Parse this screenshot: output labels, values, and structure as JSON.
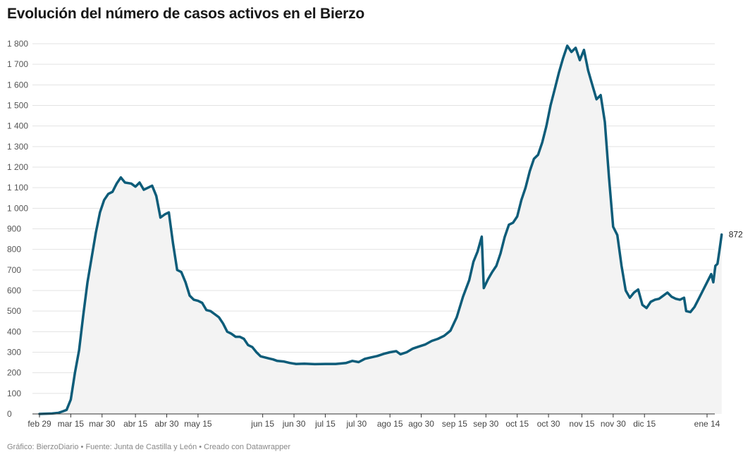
{
  "title": "Evolución del número de casos activos en el Bierzo",
  "footer": "Gráfico: BierzoDiario • Fuente: Junta de Castilla y León • Creado con Datawrapper",
  "colors": {
    "line": "#0d5c79",
    "area": "#f3f3f3",
    "grid": "#e3e3e3",
    "axis": "#333333",
    "tick_text": "#555555"
  },
  "chart_data": {
    "type": "area",
    "title": "Evolución del número de casos activos en el Bierzo",
    "xlabel": "",
    "ylabel": "",
    "ylim": [
      0,
      1800
    ],
    "grid": true,
    "y_ticks": [
      0,
      100,
      200,
      300,
      400,
      500,
      600,
      700,
      800,
      900,
      1000,
      1100,
      1200,
      1300,
      1400,
      1500,
      1600,
      1700,
      1800
    ],
    "y_tick_labels": [
      "0",
      "100",
      "200",
      "300",
      "400",
      "500",
      "600",
      "700",
      "800",
      "900",
      "1 000",
      "1 100",
      "1 200",
      "1 300",
      "1 400",
      "1 500",
      "1 600",
      "1 700",
      "1 800"
    ],
    "x_tick_labels": [
      {
        "label": "feb 29",
        "date": "2020-02-29"
      },
      {
        "label": "mar 15",
        "date": "2020-03-15"
      },
      {
        "label": "mar 30",
        "date": "2020-03-30"
      },
      {
        "label": "abr 15",
        "date": "2020-04-15"
      },
      {
        "label": "abr 30",
        "date": "2020-04-30"
      },
      {
        "label": "may 15",
        "date": "2020-05-15"
      },
      {
        "label": "jun 15",
        "date": "2020-06-15"
      },
      {
        "label": "jun 30",
        "date": "2020-06-30"
      },
      {
        "label": "jul 15",
        "date": "2020-07-15"
      },
      {
        "label": "jul 30",
        "date": "2020-07-30"
      },
      {
        "label": "ago 15",
        "date": "2020-08-15"
      },
      {
        "label": "ago 30",
        "date": "2020-08-30"
      },
      {
        "label": "sep 15",
        "date": "2020-09-15"
      },
      {
        "label": "sep 30",
        "date": "2020-09-30"
      },
      {
        "label": "oct 15",
        "date": "2020-10-15"
      },
      {
        "label": "oct 30",
        "date": "2020-10-30"
      },
      {
        "label": "nov 15",
        "date": "2020-11-15"
      },
      {
        "label": "nov 30",
        "date": "2020-11-30"
      },
      {
        "label": "dic 15",
        "date": "2020-12-15"
      },
      {
        "label": "ene 14",
        "date": "2021-01-14"
      }
    ],
    "end_label": "872",
    "series": [
      {
        "points": [
          [
            "2020-02-29",
            0
          ],
          [
            "2020-03-06",
            2
          ],
          [
            "2020-03-09",
            5
          ],
          [
            "2020-03-11",
            12
          ],
          [
            "2020-03-13",
            20
          ],
          [
            "2020-03-15",
            70
          ],
          [
            "2020-03-17",
            200
          ],
          [
            "2020-03-19",
            310
          ],
          [
            "2020-03-21",
            480
          ],
          [
            "2020-03-23",
            640
          ],
          [
            "2020-03-25",
            760
          ],
          [
            "2020-03-27",
            880
          ],
          [
            "2020-03-29",
            980
          ],
          [
            "2020-03-31",
            1040
          ],
          [
            "2020-04-02",
            1070
          ],
          [
            "2020-04-04",
            1080
          ],
          [
            "2020-04-06",
            1120
          ],
          [
            "2020-04-08",
            1150
          ],
          [
            "2020-04-10",
            1125
          ],
          [
            "2020-04-13",
            1120
          ],
          [
            "2020-04-15",
            1105
          ],
          [
            "2020-04-17",
            1125
          ],
          [
            "2020-04-19",
            1090
          ],
          [
            "2020-04-21",
            1100
          ],
          [
            "2020-04-23",
            1110
          ],
          [
            "2020-04-25",
            1060
          ],
          [
            "2020-04-27",
            955
          ],
          [
            "2020-04-29",
            970
          ],
          [
            "2020-05-01",
            980
          ],
          [
            "2020-05-03",
            830
          ],
          [
            "2020-05-05",
            700
          ],
          [
            "2020-05-07",
            690
          ],
          [
            "2020-05-09",
            640
          ],
          [
            "2020-05-11",
            575
          ],
          [
            "2020-05-13",
            555
          ],
          [
            "2020-05-15",
            550
          ],
          [
            "2020-05-17",
            540
          ],
          [
            "2020-05-19",
            505
          ],
          [
            "2020-05-21",
            500
          ],
          [
            "2020-05-23",
            485
          ],
          [
            "2020-05-25",
            470
          ],
          [
            "2020-05-27",
            440
          ],
          [
            "2020-05-29",
            400
          ],
          [
            "2020-05-31",
            390
          ],
          [
            "2020-06-02",
            375
          ],
          [
            "2020-06-04",
            375
          ],
          [
            "2020-06-06",
            365
          ],
          [
            "2020-06-08",
            335
          ],
          [
            "2020-06-10",
            325
          ],
          [
            "2020-06-12",
            300
          ],
          [
            "2020-06-14",
            280
          ],
          [
            "2020-06-16",
            275
          ],
          [
            "2020-06-18",
            270
          ],
          [
            "2020-06-20",
            265
          ],
          [
            "2020-06-22",
            258
          ],
          [
            "2020-06-25",
            255
          ],
          [
            "2020-06-28",
            248
          ],
          [
            "2020-07-01",
            243
          ],
          [
            "2020-07-05",
            244
          ],
          [
            "2020-07-10",
            242
          ],
          [
            "2020-07-15",
            243
          ],
          [
            "2020-07-20",
            243
          ],
          [
            "2020-07-25",
            248
          ],
          [
            "2020-07-28",
            258
          ],
          [
            "2020-07-31",
            252
          ],
          [
            "2020-08-03",
            268
          ],
          [
            "2020-08-06",
            275
          ],
          [
            "2020-08-09",
            282
          ],
          [
            "2020-08-12",
            292
          ],
          [
            "2020-08-15",
            300
          ],
          [
            "2020-08-18",
            305
          ],
          [
            "2020-08-20",
            290
          ],
          [
            "2020-08-23",
            300
          ],
          [
            "2020-08-26",
            318
          ],
          [
            "2020-08-29",
            328
          ],
          [
            "2020-09-01",
            338
          ],
          [
            "2020-09-04",
            355
          ],
          [
            "2020-09-07",
            365
          ],
          [
            "2020-09-10",
            380
          ],
          [
            "2020-09-13",
            405
          ],
          [
            "2020-09-16",
            470
          ],
          [
            "2020-09-19",
            570
          ],
          [
            "2020-09-22",
            650
          ],
          [
            "2020-09-24",
            740
          ],
          [
            "2020-09-26",
            790
          ],
          [
            "2020-09-28",
            862
          ],
          [
            "2020-09-29",
            612
          ],
          [
            "2020-10-01",
            655
          ],
          [
            "2020-10-03",
            690
          ],
          [
            "2020-10-05",
            720
          ],
          [
            "2020-10-07",
            780
          ],
          [
            "2020-10-09",
            860
          ],
          [
            "2020-10-11",
            920
          ],
          [
            "2020-10-13",
            930
          ],
          [
            "2020-10-15",
            960
          ],
          [
            "2020-10-17",
            1040
          ],
          [
            "2020-10-19",
            1100
          ],
          [
            "2020-10-21",
            1180
          ],
          [
            "2020-10-23",
            1240
          ],
          [
            "2020-10-25",
            1260
          ],
          [
            "2020-10-27",
            1320
          ],
          [
            "2020-10-29",
            1400
          ],
          [
            "2020-10-31",
            1500
          ],
          [
            "2020-11-02",
            1580
          ],
          [
            "2020-11-04",
            1660
          ],
          [
            "2020-11-06",
            1730
          ],
          [
            "2020-11-08",
            1790
          ],
          [
            "2020-11-10",
            1760
          ],
          [
            "2020-11-12",
            1780
          ],
          [
            "2020-11-14",
            1720
          ],
          [
            "2020-11-16",
            1770
          ],
          [
            "2020-11-18",
            1670
          ],
          [
            "2020-11-20",
            1600
          ],
          [
            "2020-11-22",
            1530
          ],
          [
            "2020-11-24",
            1550
          ],
          [
            "2020-11-26",
            1420
          ],
          [
            "2020-11-28",
            1150
          ],
          [
            "2020-11-30",
            910
          ],
          [
            "2020-12-02",
            870
          ],
          [
            "2020-12-04",
            720
          ],
          [
            "2020-12-06",
            600
          ],
          [
            "2020-12-08",
            565
          ],
          [
            "2020-12-10",
            590
          ],
          [
            "2020-12-12",
            605
          ],
          [
            "2020-12-14",
            530
          ],
          [
            "2020-12-16",
            515
          ],
          [
            "2020-12-18",
            545
          ],
          [
            "2020-12-20",
            555
          ],
          [
            "2020-12-22",
            560
          ],
          [
            "2020-12-24",
            575
          ],
          [
            "2020-12-26",
            590
          ],
          [
            "2020-12-28",
            570
          ],
          [
            "2020-12-30",
            560
          ],
          [
            "2021-01-01",
            555
          ],
          [
            "2021-01-03",
            565
          ],
          [
            "2021-01-04",
            500
          ],
          [
            "2021-01-06",
            495
          ],
          [
            "2021-01-08",
            520
          ],
          [
            "2021-01-10",
            560
          ],
          [
            "2021-01-12",
            600
          ],
          [
            "2021-01-14",
            640
          ],
          [
            "2021-01-16",
            680
          ],
          [
            "2021-01-17",
            640
          ],
          [
            "2021-01-18",
            720
          ],
          [
            "2021-01-19",
            730
          ],
          [
            "2021-01-20",
            800
          ],
          [
            "2021-01-21",
            872
          ]
        ]
      }
    ]
  }
}
